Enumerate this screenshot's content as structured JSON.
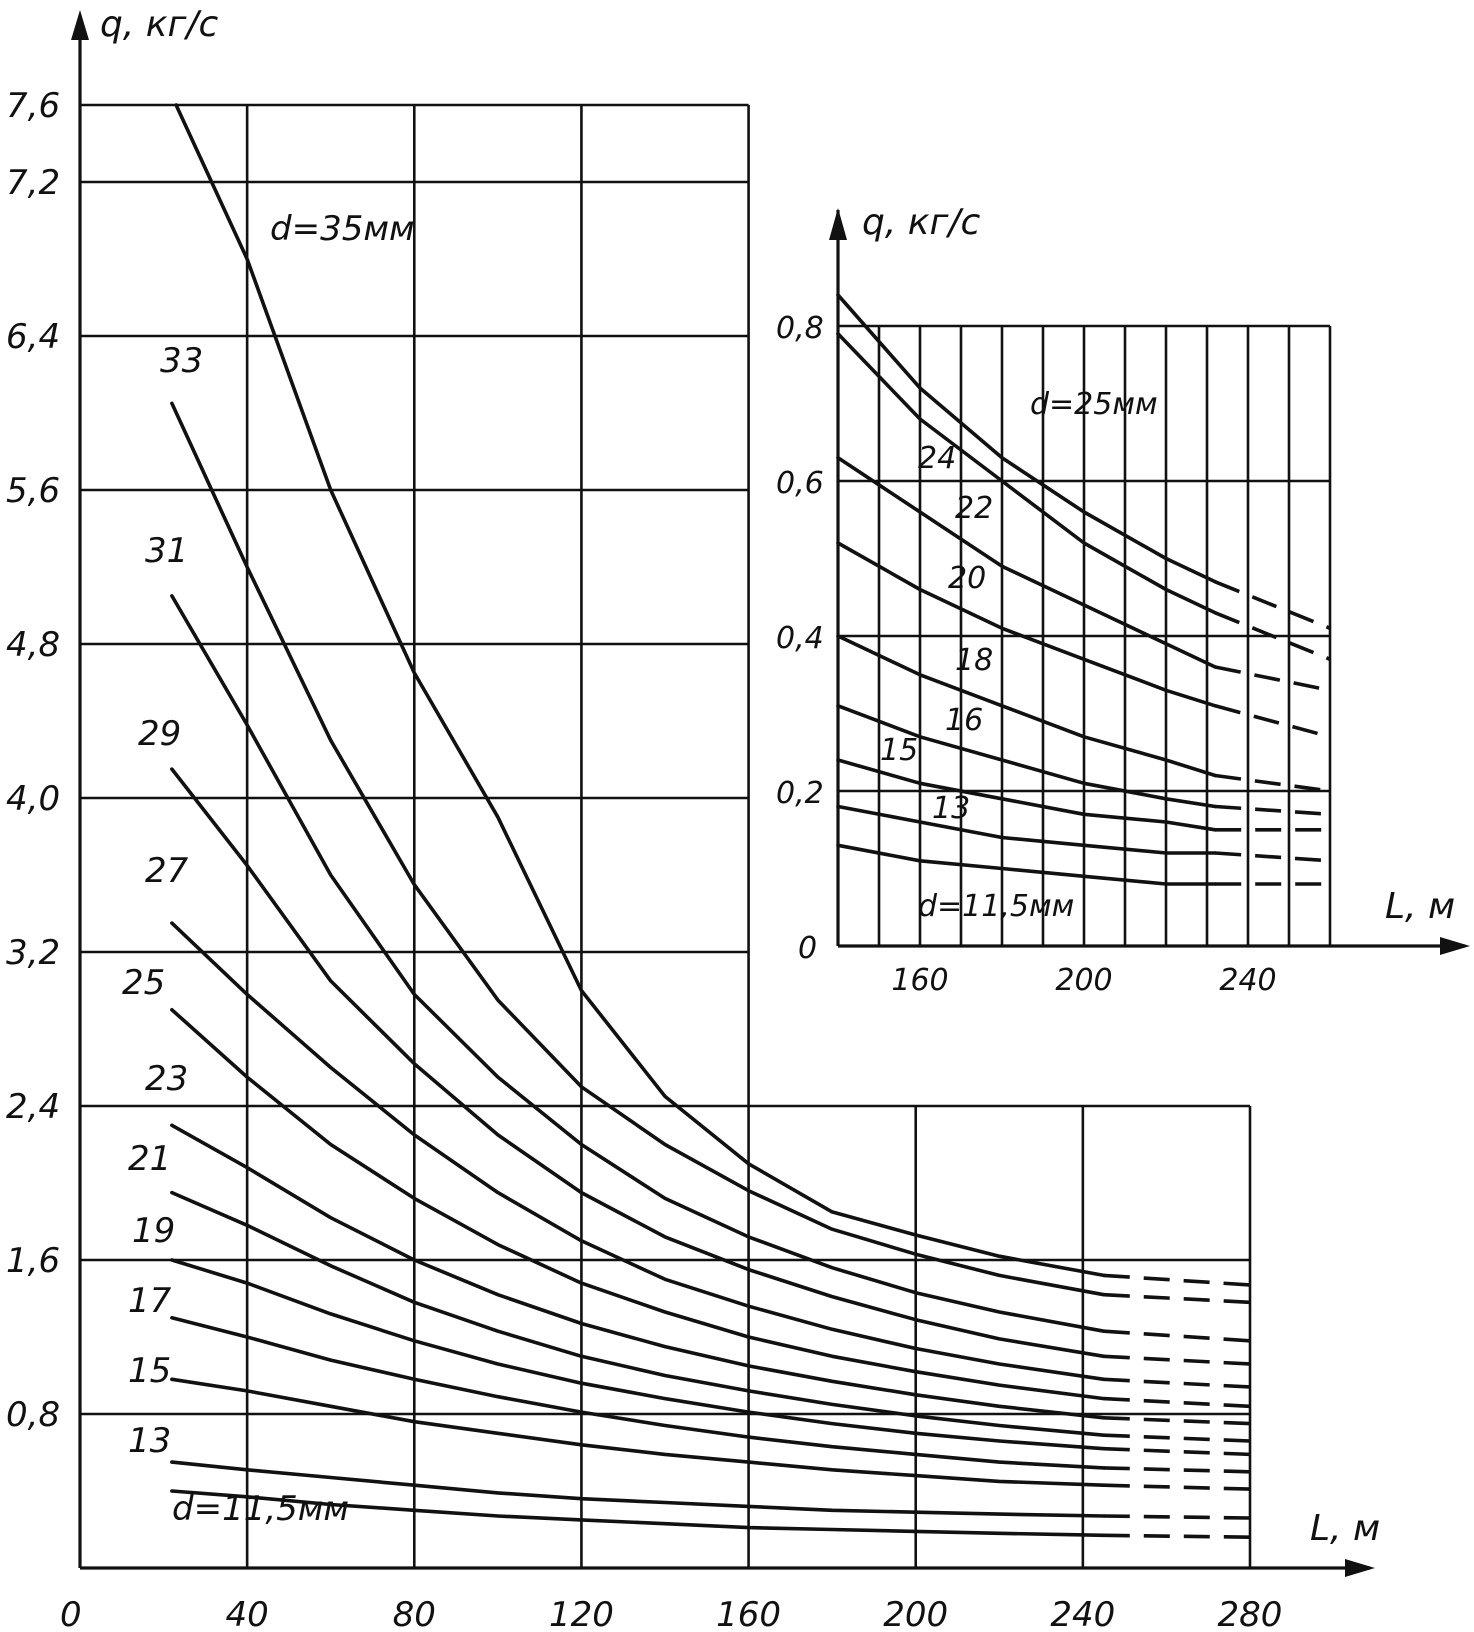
{
  "chart_data": [
    {
      "type": "line",
      "id": "main",
      "ylabel": "q, кг/с",
      "xlabel": "L, м",
      "x_ticks": [
        "0",
        "40",
        "80",
        "120",
        "160",
        "200",
        "240",
        "280"
      ],
      "y_ticks": [
        "0,8",
        "1,6",
        "2,4",
        "3,2",
        "4,0",
        "4,8",
        "5,6",
        "6,4",
        "7,2",
        "7,6"
      ],
      "xlim": [
        0,
        280
      ],
      "ylim": [
        0,
        7.6
      ],
      "grid": true,
      "series": [
        {
          "name": "d=35мм",
          "label": "d=35мм",
          "x": [
            23,
            40,
            60,
            80,
            100,
            120,
            140,
            160,
            180,
            200,
            220,
            245
          ],
          "y": [
            7.6,
            6.8,
            5.6,
            4.65,
            3.9,
            3.0,
            2.45,
            2.1,
            1.85,
            1.73,
            1.62,
            1.52
          ],
          "dash_x": [
            245,
            280
          ],
          "dash_y": [
            1.52,
            1.47
          ]
        },
        {
          "name": "33",
          "label": "33",
          "x": [
            22,
            40,
            60,
            80,
            100,
            120,
            140,
            160,
            180,
            200,
            220,
            245
          ],
          "y": [
            6.05,
            5.2,
            4.3,
            3.55,
            2.95,
            2.5,
            2.2,
            1.96,
            1.76,
            1.63,
            1.52,
            1.42
          ],
          "dash_x": [
            245,
            280
          ],
          "dash_y": [
            1.42,
            1.38
          ]
        },
        {
          "name": "31",
          "label": "31",
          "x": [
            22,
            40,
            60,
            80,
            100,
            120,
            140,
            160,
            180,
            200,
            220,
            245
          ],
          "y": [
            5.05,
            4.38,
            3.6,
            2.98,
            2.55,
            2.2,
            1.92,
            1.72,
            1.56,
            1.43,
            1.33,
            1.23
          ],
          "dash_x": [
            245,
            280
          ],
          "dash_y": [
            1.23,
            1.18
          ]
        },
        {
          "name": "29",
          "label": "29",
          "x": [
            22,
            40,
            60,
            80,
            100,
            120,
            140,
            160,
            180,
            200,
            220,
            245
          ],
          "y": [
            4.15,
            3.65,
            3.05,
            2.62,
            2.25,
            1.95,
            1.72,
            1.55,
            1.41,
            1.29,
            1.19,
            1.1
          ],
          "dash_x": [
            245,
            280
          ],
          "dash_y": [
            1.1,
            1.06
          ]
        },
        {
          "name": "27",
          "label": "27",
          "x": [
            22,
            40,
            60,
            80,
            100,
            120,
            140,
            160,
            180,
            200,
            220,
            245
          ],
          "y": [
            3.35,
            2.98,
            2.6,
            2.25,
            1.95,
            1.7,
            1.5,
            1.36,
            1.24,
            1.14,
            1.06,
            0.98
          ],
          "dash_x": [
            245,
            280
          ],
          "dash_y": [
            0.98,
            0.94
          ]
        },
        {
          "name": "25",
          "label": "25",
          "x": [
            22,
            40,
            60,
            80,
            100,
            120,
            140,
            160,
            180,
            200,
            220,
            245
          ],
          "y": [
            2.9,
            2.55,
            2.2,
            1.92,
            1.68,
            1.48,
            1.33,
            1.2,
            1.1,
            1.02,
            0.95,
            0.88
          ],
          "dash_x": [
            245,
            280
          ],
          "dash_y": [
            0.88,
            0.84
          ]
        },
        {
          "name": "23",
          "label": "23",
          "x": [
            22,
            40,
            60,
            80,
            100,
            120,
            140,
            160,
            180,
            200,
            220,
            245
          ],
          "y": [
            2.3,
            2.08,
            1.82,
            1.6,
            1.42,
            1.27,
            1.15,
            1.05,
            0.97,
            0.9,
            0.84,
            0.78
          ],
          "dash_x": [
            245,
            280
          ],
          "dash_y": [
            0.78,
            0.75
          ]
        },
        {
          "name": "21",
          "label": "21",
          "x": [
            22,
            40,
            60,
            80,
            100,
            120,
            140,
            160,
            180,
            200,
            220,
            245
          ],
          "y": [
            1.95,
            1.78,
            1.57,
            1.38,
            1.23,
            1.1,
            1.0,
            0.92,
            0.85,
            0.79,
            0.74,
            0.69
          ],
          "dash_x": [
            245,
            280
          ],
          "dash_y": [
            0.69,
            0.66
          ]
        },
        {
          "name": "19",
          "label": "19",
          "x": [
            22,
            40,
            60,
            80,
            100,
            120,
            140,
            160,
            180,
            200,
            220,
            245
          ],
          "y": [
            1.6,
            1.48,
            1.32,
            1.18,
            1.06,
            0.96,
            0.88,
            0.81,
            0.75,
            0.7,
            0.66,
            0.62
          ],
          "dash_x": [
            245,
            280
          ],
          "dash_y": [
            0.62,
            0.59
          ]
        },
        {
          "name": "17",
          "label": "17",
          "x": [
            22,
            40,
            60,
            80,
            100,
            120,
            140,
            160,
            180,
            200,
            220,
            245
          ],
          "y": [
            1.3,
            1.2,
            1.08,
            0.98,
            0.89,
            0.81,
            0.74,
            0.68,
            0.63,
            0.59,
            0.55,
            0.52
          ],
          "dash_x": [
            245,
            280
          ],
          "dash_y": [
            0.52,
            0.5
          ]
        },
        {
          "name": "15",
          "label": "15",
          "x": [
            22,
            40,
            60,
            80,
            100,
            120,
            140,
            160,
            180,
            200,
            220,
            245
          ],
          "y": [
            0.98,
            0.92,
            0.84,
            0.76,
            0.7,
            0.64,
            0.59,
            0.55,
            0.51,
            0.48,
            0.45,
            0.43
          ],
          "dash_x": [
            245,
            280
          ],
          "dash_y": [
            0.43,
            0.41
          ]
        },
        {
          "name": "13",
          "label": "13",
          "x": [
            22,
            40,
            60,
            80,
            100,
            120,
            140,
            160,
            180,
            200,
            220,
            245
          ],
          "y": [
            0.55,
            0.51,
            0.47,
            0.43,
            0.39,
            0.36,
            0.34,
            0.32,
            0.3,
            0.29,
            0.28,
            0.27
          ],
          "dash_x": [
            245,
            280
          ],
          "dash_y": [
            0.27,
            0.26
          ]
        },
        {
          "name": "d=11,5мм",
          "label": "d=11,5мм",
          "x": [
            22,
            40,
            60,
            80,
            100,
            120,
            140,
            160,
            180,
            200,
            220,
            245
          ],
          "y": [
            0.4,
            0.37,
            0.33,
            0.3,
            0.27,
            0.25,
            0.23,
            0.21,
            0.2,
            0.19,
            0.18,
            0.17
          ],
          "dash_x": [
            245,
            280
          ],
          "dash_y": [
            0.17,
            0.16
          ]
        }
      ]
    },
    {
      "type": "line",
      "id": "inset",
      "ylabel": "q, кг/с",
      "xlabel": "L, м",
      "x_ticks": [
        "160",
        "200",
        "240"
      ],
      "y_ticks": [
        "0",
        "0,2",
        "0,4",
        "0,6",
        "0,8"
      ],
      "xlim": [
        140,
        260
      ],
      "ylim": [
        0,
        0.8
      ],
      "grid": true,
      "series": [
        {
          "name": "d=25мм",
          "label": "d=25мм",
          "x": [
            140,
            160,
            180,
            200,
            220,
            232
          ],
          "y": [
            0.84,
            0.72,
            0.63,
            0.56,
            0.5,
            0.47
          ],
          "dash_x": [
            232,
            260
          ],
          "dash_y": [
            0.47,
            0.41
          ]
        },
        {
          "name": "24",
          "label": "24",
          "x": [
            140,
            160,
            180,
            200,
            220,
            232
          ],
          "y": [
            0.79,
            0.68,
            0.6,
            0.52,
            0.46,
            0.43
          ],
          "dash_x": [
            232,
            260
          ],
          "dash_y": [
            0.43,
            0.37
          ]
        },
        {
          "name": "22",
          "label": "22",
          "x": [
            140,
            160,
            180,
            200,
            220,
            232
          ],
          "y": [
            0.63,
            0.56,
            0.49,
            0.44,
            0.39,
            0.36
          ],
          "dash_x": [
            232,
            260
          ],
          "dash_y": [
            0.36,
            0.33
          ]
        },
        {
          "name": "20",
          "label": "20",
          "x": [
            140,
            160,
            180,
            200,
            220,
            232
          ],
          "y": [
            0.52,
            0.46,
            0.41,
            0.37,
            0.33,
            0.31
          ],
          "dash_x": [
            232,
            260
          ],
          "dash_y": [
            0.31,
            0.27
          ]
        },
        {
          "name": "18",
          "label": "18",
          "x": [
            140,
            160,
            180,
            200,
            220,
            232
          ],
          "y": [
            0.4,
            0.35,
            0.31,
            0.27,
            0.24,
            0.22
          ],
          "dash_x": [
            232,
            260
          ],
          "dash_y": [
            0.22,
            0.2
          ]
        },
        {
          "name": "16",
          "label": "16",
          "x": [
            140,
            160,
            180,
            200,
            220,
            232
          ],
          "y": [
            0.31,
            0.27,
            0.24,
            0.21,
            0.19,
            0.18
          ],
          "dash_x": [
            232,
            260
          ],
          "dash_y": [
            0.18,
            0.17
          ]
        },
        {
          "name": "15",
          "label": "15",
          "x": [
            140,
            160,
            180,
            200,
            220,
            232
          ],
          "y": [
            0.24,
            0.21,
            0.19,
            0.17,
            0.16,
            0.15
          ],
          "dash_x": [
            232,
            260
          ],
          "dash_y": [
            0.15,
            0.15
          ]
        },
        {
          "name": "13",
          "label": "13",
          "x": [
            140,
            160,
            180,
            200,
            220,
            232
          ],
          "y": [
            0.18,
            0.16,
            0.14,
            0.13,
            0.12,
            0.12
          ],
          "dash_x": [
            232,
            260
          ],
          "dash_y": [
            0.12,
            0.11
          ]
        },
        {
          "name": "d=11,5мм",
          "label": "d=11,5мм",
          "x": [
            140,
            160,
            180,
            200,
            220,
            232
          ],
          "y": [
            0.13,
            0.11,
            0.1,
            0.09,
            0.08,
            0.08
          ],
          "dash_x": [
            232,
            260
          ],
          "dash_y": [
            0.08,
            0.08
          ]
        }
      ]
    }
  ]
}
